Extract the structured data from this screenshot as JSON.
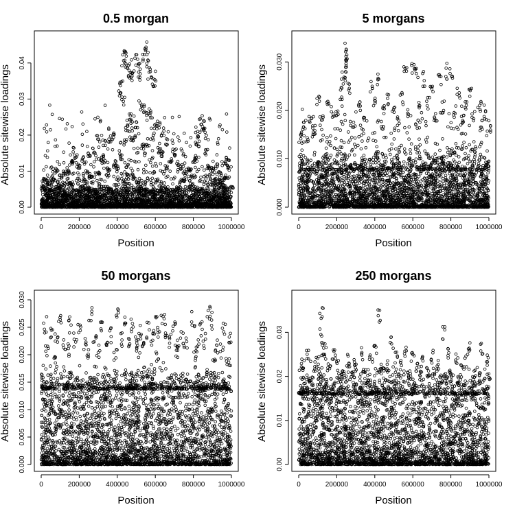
{
  "chart_data": [
    {
      "type": "scatter",
      "title": "0.5 morgan",
      "xlabel": "Position",
      "ylabel": "Absolute sitewise loadings",
      "xlim": [
        0,
        1000000
      ],
      "ylim": [
        0,
        0.047
      ],
      "xticks": [
        0,
        200000,
        400000,
        600000,
        800000,
        1000000
      ],
      "xtick_labels": [
        "0",
        "200000",
        "400000",
        "600000",
        "800000",
        "1000000"
      ],
      "yticks": [
        0,
        0.01,
        0.02,
        0.03,
        0.04
      ],
      "ytick_labels": [
        "0.00",
        "0.01",
        "0.02",
        "0.03",
        "0.04"
      ],
      "marker": "open-circle",
      "grid": false,
      "points": [
        [
          430000,
          0.044
        ],
        [
          440000,
          0.045
        ],
        [
          450000,
          0.042
        ],
        [
          460000,
          0.04
        ],
        [
          470000,
          0.039
        ],
        [
          480000,
          0.041
        ],
        [
          500000,
          0.043
        ],
        [
          510000,
          0.042
        ],
        [
          520000,
          0.039
        ],
        [
          540000,
          0.045
        ],
        [
          550000,
          0.046
        ],
        [
          560000,
          0.044
        ],
        [
          570000,
          0.04
        ],
        [
          580000,
          0.038
        ],
        [
          600000,
          0.038
        ],
        [
          420000,
          0.038
        ],
        [
          410000,
          0.034
        ],
        [
          430000,
          0.031
        ],
        [
          460000,
          0.027
        ],
        [
          480000,
          0.026
        ],
        [
          520000,
          0.03
        ],
        [
          540000,
          0.029
        ],
        [
          560000,
          0.028
        ],
        [
          580000,
          0.027
        ],
        [
          600000,
          0.024
        ],
        [
          620000,
          0.025
        ],
        [
          640000,
          0.022
        ],
        [
          660000,
          0.019
        ],
        [
          500000,
          0.025
        ],
        [
          450000,
          0.024
        ],
        [
          380000,
          0.021
        ],
        [
          360000,
          0.02
        ],
        [
          330000,
          0.019
        ],
        [
          300000,
          0.02
        ],
        [
          280000,
          0.017
        ],
        [
          250000,
          0.016
        ],
        [
          220000,
          0.014
        ],
        [
          200000,
          0.012
        ],
        [
          180000,
          0.015
        ],
        [
          160000,
          0.013
        ],
        [
          140000,
          0.011
        ],
        [
          120000,
          0.01
        ],
        [
          100000,
          0.009
        ],
        [
          80000,
          0.011
        ],
        [
          60000,
          0.008
        ],
        [
          40000,
          0.007
        ],
        [
          20000,
          0.008
        ],
        [
          10000,
          0.006
        ],
        [
          840000,
          0.026
        ],
        [
          850000,
          0.024
        ],
        [
          860000,
          0.022
        ],
        [
          830000,
          0.021
        ],
        [
          820000,
          0.018
        ],
        [
          810000,
          0.014
        ],
        [
          870000,
          0.016
        ],
        [
          880000,
          0.012
        ],
        [
          900000,
          0.011
        ],
        [
          920000,
          0.012
        ],
        [
          940000,
          0.01
        ],
        [
          970000,
          0.013
        ],
        [
          980000,
          0.014
        ],
        [
          990000,
          0.012
        ],
        [
          700000,
          0.016
        ],
        [
          720000,
          0.013
        ],
        [
          740000,
          0.012
        ],
        [
          760000,
          0.01
        ],
        [
          780000,
          0.011
        ],
        [
          680000,
          0.014
        ],
        [
          660000,
          0.012
        ],
        [
          400000,
          0.012
        ],
        [
          350000,
          0.011
        ],
        [
          320000,
          0.015
        ],
        [
          260000,
          0.009
        ],
        [
          150000,
          0.007
        ],
        [
          620000,
          0.017
        ],
        [
          640000,
          0.016
        ],
        [
          590000,
          0.021
        ],
        [
          560000,
          0.019
        ],
        [
          530000,
          0.018
        ],
        [
          490000,
          0.02
        ],
        [
          470000,
          0.021
        ],
        [
          440000,
          0.019
        ],
        [
          420000,
          0.015
        ],
        [
          390000,
          0.013
        ],
        [
          300000,
          0.01
        ],
        [
          230000,
          0.008
        ],
        [
          90000,
          0.006
        ],
        [
          50000,
          0.005
        ],
        [
          750000,
          0.008
        ],
        [
          800000,
          0.009
        ],
        [
          910000,
          0.008
        ],
        [
          950000,
          0.007
        ],
        [
          970000,
          0.009
        ],
        [
          1000000,
          0.006
        ]
      ]
    },
    {
      "type": "scatter",
      "title": "5 morgans",
      "xlabel": "Position",
      "ylabel": "Absolute sitewise loadings",
      "xlim": [
        0,
        1000000
      ],
      "ylim": [
        0,
        0.035
      ],
      "xticks": [
        0,
        200000,
        400000,
        600000,
        800000,
        1000000
      ],
      "xtick_labels": [
        "0",
        "200000",
        "400000",
        "600000",
        "800000",
        "1000000"
      ],
      "yticks": [
        0,
        0.01,
        0.02,
        0.03
      ],
      "ytick_labels": [
        "0.000",
        "0.010",
        "0.020",
        "0.030"
      ],
      "marker": "open-circle",
      "grid": false,
      "points": [
        [
          250000,
          0.034
        ],
        [
          245000,
          0.033
        ],
        [
          255000,
          0.031
        ],
        [
          240000,
          0.029
        ],
        [
          230000,
          0.028
        ],
        [
          260000,
          0.026
        ],
        [
          220000,
          0.025
        ],
        [
          380000,
          0.027
        ],
        [
          420000,
          0.028
        ],
        [
          470000,
          0.024
        ],
        [
          560000,
          0.029
        ],
        [
          600000,
          0.03
        ],
        [
          620000,
          0.029
        ],
        [
          660000,
          0.028
        ],
        [
          700000,
          0.026
        ],
        [
          740000,
          0.028
        ],
        [
          780000,
          0.03
        ],
        [
          800000,
          0.029
        ],
        [
          840000,
          0.025
        ],
        [
          900000,
          0.025
        ],
        [
          950000,
          0.022
        ],
        [
          980000,
          0.02
        ],
        [
          100000,
          0.023
        ],
        [
          150000,
          0.022
        ],
        [
          180000,
          0.021
        ],
        [
          60000,
          0.019
        ],
        [
          30000,
          0.018
        ],
        [
          10000,
          0.016
        ],
        [
          320000,
          0.022
        ],
        [
          350000,
          0.02
        ],
        [
          400000,
          0.023
        ],
        [
          450000,
          0.021
        ],
        [
          500000,
          0.022
        ],
        [
          540000,
          0.024
        ],
        [
          580000,
          0.021
        ],
        [
          640000,
          0.022
        ],
        [
          680000,
          0.023
        ],
        [
          720000,
          0.02
        ],
        [
          760000,
          0.022
        ],
        [
          820000,
          0.021
        ],
        [
          860000,
          0.019
        ],
        [
          880000,
          0.022
        ],
        [
          920000,
          0.02
        ],
        [
          960000,
          0.018
        ],
        [
          1000000,
          0.017
        ],
        [
          200000,
          0.02
        ],
        [
          280000,
          0.018
        ],
        [
          120000,
          0.019
        ],
        [
          80000,
          0.017
        ],
        [
          440000,
          0.018
        ],
        [
          520000,
          0.019
        ],
        [
          620000,
          0.018
        ]
      ]
    },
    {
      "type": "scatter",
      "title": "50 morgans",
      "xlabel": "Position",
      "ylabel": "Absolute sitewise loadings",
      "xlim": [
        0,
        1000000
      ],
      "ylim": [
        0,
        0.0305
      ],
      "xticks": [
        0,
        200000,
        400000,
        600000,
        800000,
        1000000
      ],
      "xtick_labels": [
        "0",
        "200000",
        "400000",
        "600000",
        "800000",
        "1000000"
      ],
      "yticks": [
        0,
        0.005,
        0.01,
        0.015,
        0.02,
        0.025,
        0.03
      ],
      "ytick_labels": [
        "0.000",
        "0.005",
        "0.010",
        "0.015",
        "0.020",
        "0.025",
        "0.030"
      ],
      "marker": "open-circle",
      "grid": false,
      "points": [
        [
          100000,
          0.029
        ],
        [
          260000,
          0.029
        ],
        [
          400000,
          0.029
        ],
        [
          440000,
          0.028
        ],
        [
          600000,
          0.027
        ],
        [
          640000,
          0.028
        ],
        [
          700000,
          0.027
        ],
        [
          800000,
          0.028
        ],
        [
          880000,
          0.029
        ],
        [
          890000,
          0.028
        ],
        [
          20000,
          0.027
        ],
        [
          50000,
          0.026
        ],
        [
          150000,
          0.027
        ],
        [
          200000,
          0.026
        ],
        [
          320000,
          0.026
        ],
        [
          360000,
          0.025
        ],
        [
          480000,
          0.027
        ],
        [
          520000,
          0.026
        ],
        [
          560000,
          0.026
        ],
        [
          660000,
          0.026
        ],
        [
          740000,
          0.025
        ],
        [
          840000,
          0.026
        ],
        [
          960000,
          0.026
        ],
        [
          990000,
          0.025
        ],
        [
          80000,
          0.024
        ],
        [
          120000,
          0.023
        ],
        [
          180000,
          0.024
        ],
        [
          230000,
          0.023
        ],
        [
          280000,
          0.024
        ],
        [
          340000,
          0.023
        ],
        [
          420000,
          0.024
        ],
        [
          460000,
          0.023
        ],
        [
          500000,
          0.024
        ],
        [
          540000,
          0.023
        ],
        [
          580000,
          0.024
        ],
        [
          620000,
          0.025
        ],
        [
          680000,
          0.024
        ],
        [
          720000,
          0.023
        ],
        [
          760000,
          0.024
        ],
        [
          820000,
          0.023
        ],
        [
          860000,
          0.024
        ],
        [
          920000,
          0.023
        ],
        [
          950000,
          0.022
        ],
        [
          30000,
          0.022
        ],
        [
          70000,
          0.021
        ],
        [
          140000,
          0.022
        ],
        [
          250000,
          0.021
        ],
        [
          300000,
          0.022
        ],
        [
          390000,
          0.021
        ],
        [
          510000,
          0.022
        ],
        [
          610000,
          0.021
        ],
        [
          710000,
          0.022
        ],
        [
          810000,
          0.021
        ],
        [
          910000,
          0.021
        ],
        [
          980000,
          0.02
        ]
      ]
    },
    {
      "type": "scatter",
      "title": "250 morgans",
      "xlabel": "Position",
      "ylabel": "Absolute sitewise loadings",
      "xlim": [
        0,
        1000000
      ],
      "ylim": [
        0,
        0.038
      ],
      "xticks": [
        0,
        200000,
        400000,
        600000,
        800000,
        1000000
      ],
      "xtick_labels": [
        "0",
        "200000",
        "400000",
        "600000",
        "800000",
        "1000000"
      ],
      "yticks": [
        0,
        0.01,
        0.02,
        0.03
      ],
      "ytick_labels": [
        "0.00",
        "0.01",
        "0.02",
        "0.03"
      ],
      "marker": "open-circle",
      "grid": false,
      "points": [
        [
          120000,
          0.037
        ],
        [
          420000,
          0.036
        ],
        [
          120000,
          0.031
        ],
        [
          760000,
          0.032
        ],
        [
          50000,
          0.027
        ],
        [
          130000,
          0.028
        ],
        [
          140000,
          0.027
        ],
        [
          180000,
          0.026
        ],
        [
          200000,
          0.026
        ],
        [
          260000,
          0.025
        ],
        [
          330000,
          0.027
        ],
        [
          380000,
          0.026
        ],
        [
          400000,
          0.027
        ],
        [
          490000,
          0.029
        ],
        [
          510000,
          0.026
        ],
        [
          560000,
          0.027
        ],
        [
          600000,
          0.026
        ],
        [
          650000,
          0.025
        ],
        [
          700000,
          0.026
        ],
        [
          780000,
          0.027
        ],
        [
          830000,
          0.026
        ],
        [
          900000,
          0.028
        ],
        [
          960000,
          0.028
        ],
        [
          990000,
          0.025
        ],
        [
          20000,
          0.024
        ],
        [
          80000,
          0.024
        ],
        [
          100000,
          0.025
        ],
        [
          160000,
          0.024
        ],
        [
          230000,
          0.023
        ],
        [
          300000,
          0.024
        ],
        [
          350000,
          0.023
        ],
        [
          440000,
          0.023
        ],
        [
          470000,
          0.024
        ],
        [
          540000,
          0.024
        ],
        [
          620000,
          0.023
        ],
        [
          680000,
          0.022
        ],
        [
          730000,
          0.024
        ],
        [
          800000,
          0.022
        ],
        [
          860000,
          0.023
        ],
        [
          880000,
          0.025
        ],
        [
          930000,
          0.022
        ],
        [
          1000000,
          0.021
        ],
        [
          60000,
          0.021
        ],
        [
          110000,
          0.022
        ],
        [
          210000,
          0.021
        ],
        [
          290000,
          0.022
        ],
        [
          370000,
          0.021
        ],
        [
          430000,
          0.022
        ],
        [
          520000,
          0.021
        ],
        [
          580000,
          0.022
        ],
        [
          640000,
          0.021
        ],
        [
          710000,
          0.021
        ],
        [
          770000,
          0.021
        ],
        [
          840000,
          0.021
        ],
        [
          950000,
          0.021
        ]
      ]
    }
  ]
}
